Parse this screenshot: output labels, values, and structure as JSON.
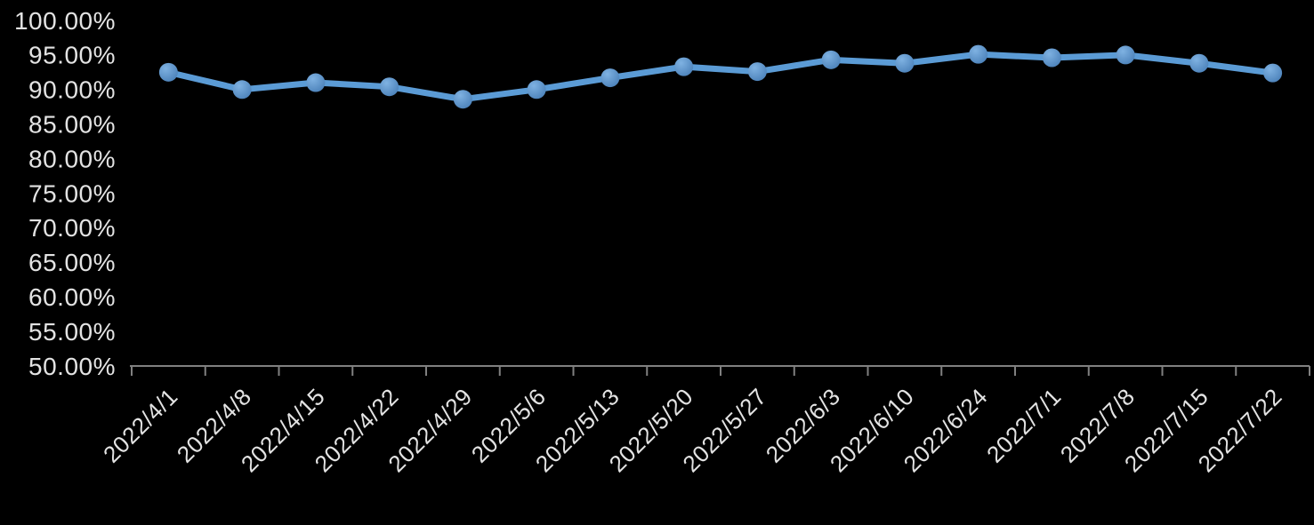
{
  "chart_data": {
    "type": "line",
    "title": "",
    "categories": [
      "2022/4/1",
      "2022/4/8",
      "2022/4/15",
      "2022/4/22",
      "2022/4/29",
      "2022/5/6",
      "2022/5/13",
      "2022/5/20",
      "2022/5/27",
      "2022/6/3",
      "2022/6/10",
      "2022/6/24",
      "2022/7/1",
      "2022/7/8",
      "2022/7/15",
      "2022/7/22"
    ],
    "values": [
      92.5,
      90.0,
      91.0,
      90.4,
      88.6,
      90.0,
      91.7,
      93.3,
      92.6,
      94.3,
      93.8,
      95.1,
      94.6,
      95.0,
      93.8,
      92.4
    ],
    "value_unit": "percent",
    "ylim": [
      50,
      100
    ],
    "ytick_step": 5,
    "ytick_labels": [
      "50.00%",
      "55.00%",
      "60.00%",
      "65.00%",
      "70.00%",
      "75.00%",
      "80.00%",
      "85.00%",
      "90.00%",
      "95.00%",
      "100.00%"
    ],
    "x_tick_label_rotation": -45,
    "grid": false,
    "legend_position": "none",
    "marker": "circle",
    "colors": {
      "series": "#5B9BD5",
      "marker_light": "#7FB2E2",
      "marker_dark": "#4A80B8",
      "axis": "#808080",
      "tick_label": "#E3E3E3",
      "background": "#000000"
    }
  }
}
